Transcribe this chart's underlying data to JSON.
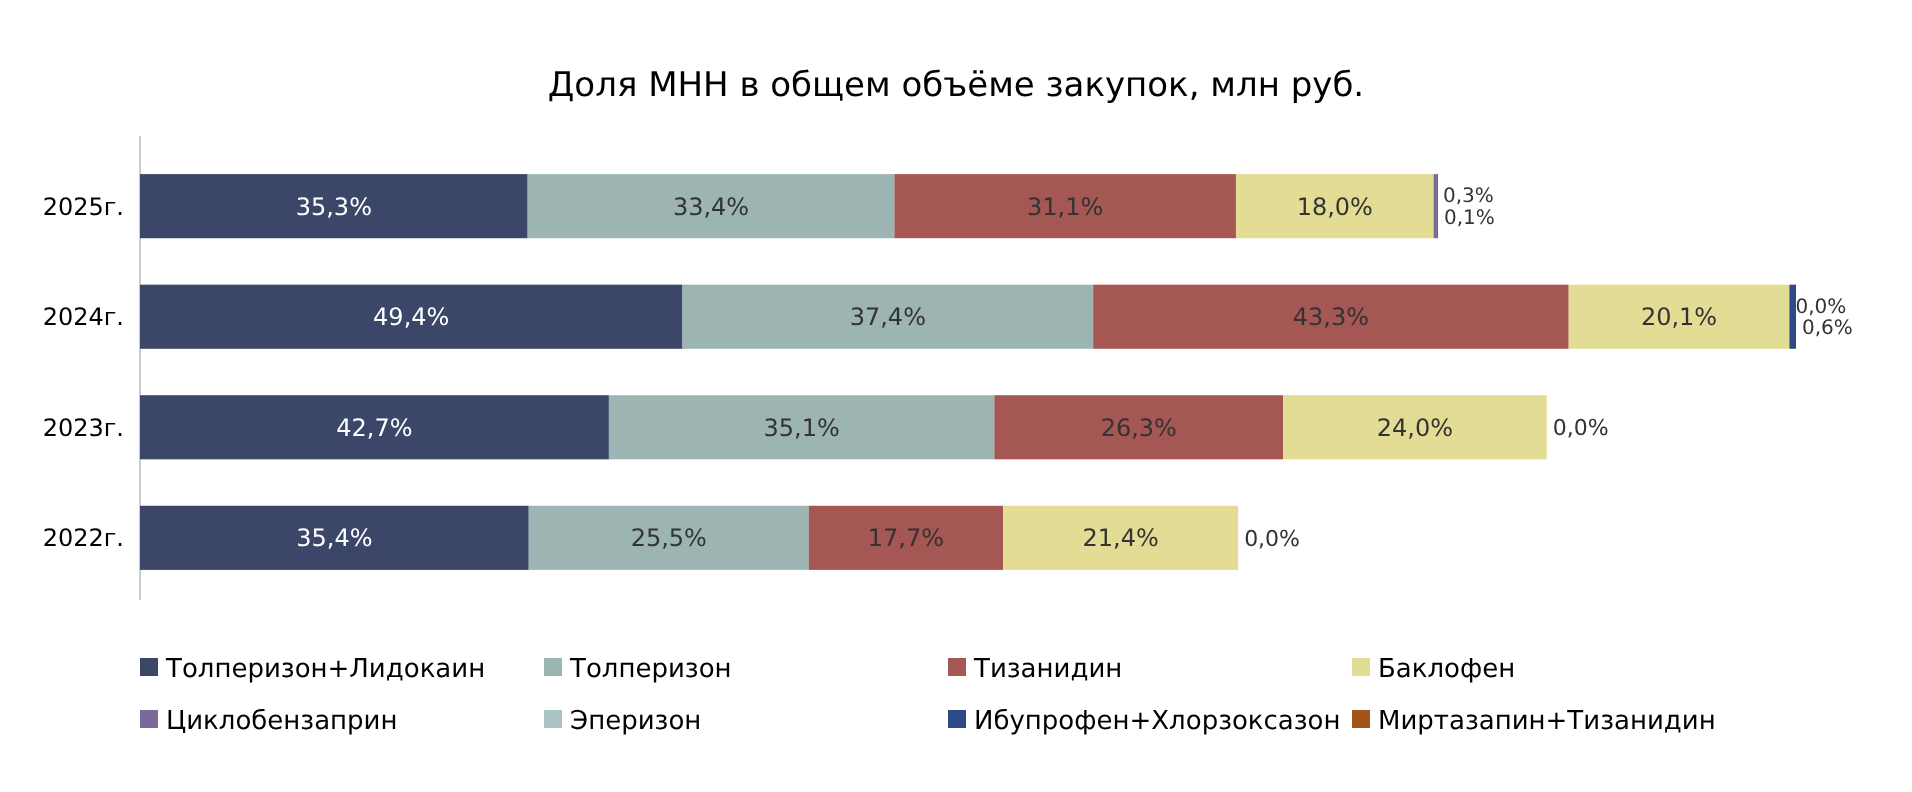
{
  "chart_data": {
    "type": "bar",
    "orientation": "horizontal",
    "stacked": true,
    "title": "Доля МНН в общем объёме закупок, млн руб.",
    "categories": [
      "2025г.",
      "2024г.",
      "2023г.",
      "2022г."
    ],
    "legend": "bottom",
    "series": [
      {
        "name": "Толперизон+Лидокаин",
        "color": "#3b4669",
        "values": [
          35.3,
          49.4,
          42.7,
          35.4
        ],
        "value_labels": [
          "35,3%",
          "49,4%",
          "42,7%",
          "35,4%"
        ]
      },
      {
        "name": "Толперизон",
        "color": "#9db5b2",
        "values": [
          33.4,
          37.4,
          35.1,
          25.5
        ],
        "value_labels": [
          "33,4%",
          "37,4%",
          "35,1%",
          "25,5%"
        ]
      },
      {
        "name": "Тизанидин",
        "color": "#a55753",
        "values": [
          31.1,
          43.3,
          26.3,
          17.7
        ],
        "value_labels": [
          "31,1%",
          "43,3%",
          "26,3%",
          "17,7%"
        ]
      },
      {
        "name": "Баклофен",
        "color": "#e3dc95",
        "values": [
          18.0,
          20.1,
          24.0,
          21.4
        ],
        "value_labels": [
          "18,0%",
          "20,1%",
          "24,0%",
          "21,4%"
        ]
      },
      {
        "name": "Циклобензаприн",
        "color": "#7a6a9c",
        "values": [
          0.3,
          0.0,
          0.0,
          0.0
        ],
        "value_labels": [
          "0,3%",
          "0,0%",
          "0,0%",
          "0,0%"
        ]
      },
      {
        "name": "Эперизон",
        "color": "#a9c4c0",
        "values": [
          null,
          null,
          null,
          null
        ]
      },
      {
        "name": "Ибупрофен+Хлорзоксазон",
        "color": "#2e4a86",
        "values": [
          null,
          0.6,
          null,
          null
        ],
        "value_labels": [
          null,
          "0,6%",
          null,
          null
        ]
      },
      {
        "name": "Миртазапин+Тизанидин",
        "color": "#a5521b",
        "values": [
          0.1,
          null,
          null,
          null
        ],
        "value_labels": [
          "0,1%",
          null,
          null,
          null
        ]
      }
    ]
  }
}
